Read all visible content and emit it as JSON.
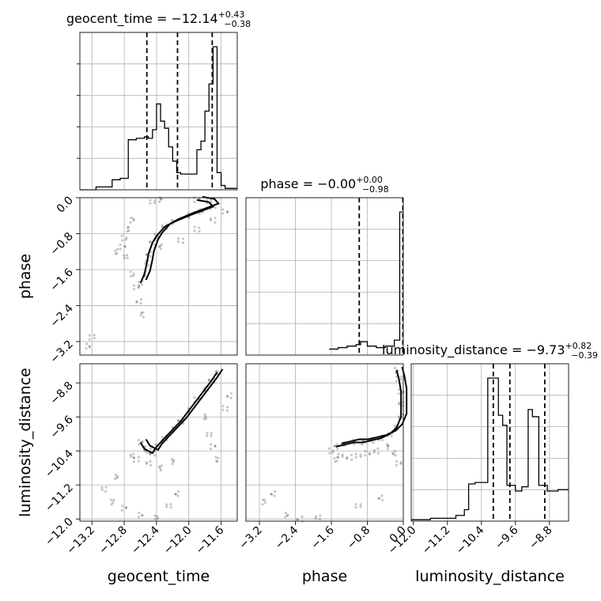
{
  "chart_data": {
    "type": "corner",
    "parameters": [
      {
        "name": "geocent_time",
        "label": "geocent_time",
        "range": [
          -13.35,
          -11.4
        ],
        "ticks": [
          -13.2,
          -12.8,
          -12.4,
          -12.0,
          -11.6
        ],
        "tick_labels": [
          "−13.2",
          "−12.8",
          "−12.4",
          "−12.0",
          "−11.6"
        ]
      },
      {
        "name": "phase",
        "label": "phase",
        "range": [
          -3.5,
          0.0
        ],
        "ticks": [
          -3.2,
          -2.4,
          -1.6,
          -0.8,
          0.0
        ],
        "tick_labels": [
          "−3.2",
          "−2.4",
          "−1.6",
          "−0.8",
          "0.0"
        ]
      },
      {
        "name": "luminosity_distance",
        "label": "luminosity_distance",
        "range": [
          -12.05,
          -8.35
        ],
        "ticks": [
          -12.0,
          -11.2,
          -10.4,
          -9.6,
          -8.8
        ],
        "tick_labels": [
          "−12.0",
          "−11.2",
          "−10.4",
          "−9.6",
          "−8.8"
        ]
      }
    ],
    "titles": [
      {
        "param": "geocent_time",
        "main": "geocent_time = −12.14",
        "sup": "+0.43",
        "sub": "−0.38"
      },
      {
        "param": "phase",
        "main": "phase = −0.00",
        "sup": "+0.00",
        "sub": "−0.98"
      },
      {
        "param": "luminosity_distance",
        "main": "luminosity_distance = −9.73",
        "sup": "+0.82",
        "sub": "−0.39"
      }
    ],
    "histograms": [
      {
        "param": "geocent_time",
        "quantiles": [
          -12.52,
          -12.14,
          -11.71
        ],
        "bin_edges": [
          -13.35,
          -13.15,
          -12.95,
          -12.85,
          -12.75,
          -12.65,
          -12.55,
          -12.5,
          -12.45,
          -12.4,
          -12.35,
          -12.3,
          -12.25,
          -12.2,
          -12.15,
          -12.1,
          -12.0,
          -11.9,
          -11.85,
          -11.8,
          -11.75,
          -11.7,
          -11.65,
          -11.6,
          -11.55,
          -11.4
        ],
        "counts": [
          0.0,
          0.02,
          0.07,
          0.08,
          0.35,
          0.36,
          0.37,
          0.36,
          0.42,
          0.6,
          0.48,
          0.43,
          0.3,
          0.2,
          0.12,
          0.11,
          0.11,
          0.28,
          0.34,
          0.55,
          0.74,
          1.0,
          0.12,
          0.03,
          0.01
        ]
      },
      {
        "param": "phase",
        "quantiles": [
          -0.98,
          -0.01
        ],
        "bin_edges": [
          -1.65,
          -1.45,
          -1.25,
          -1.05,
          -0.95,
          -0.8,
          -0.6,
          -0.4,
          -0.2,
          -0.08,
          0.0
        ],
        "counts": [
          0.04,
          0.05,
          0.06,
          0.07,
          0.09,
          0.06,
          0.05,
          0.06,
          0.1,
          0.96
        ]
      },
      {
        "param": "luminosity_distance",
        "quantiles": [
          -10.12,
          -9.73,
          -8.91
        ],
        "bin_edges": [
          -12.05,
          -11.6,
          -11.0,
          -10.8,
          -10.7,
          -10.55,
          -10.25,
          -10.0,
          -9.9,
          -9.8,
          -9.6,
          -9.45,
          -9.3,
          -9.2,
          -9.05,
          -8.85,
          -8.6,
          -8.35
        ],
        "counts": [
          0.01,
          0.02,
          0.04,
          0.08,
          0.26,
          0.27,
          1.0,
          0.74,
          0.67,
          0.25,
          0.21,
          0.24,
          0.78,
          0.73,
          0.25,
          0.21,
          0.22
        ]
      }
    ],
    "scatter_2d": [
      {
        "x": "geocent_time",
        "y": "phase",
        "points": [
          [
            -12.6,
            -1.9
          ],
          [
            -12.55,
            -1.7
          ],
          [
            -12.52,
            -1.45
          ],
          [
            -12.5,
            -1.25
          ],
          [
            -12.45,
            -1.0
          ],
          [
            -12.4,
            -0.85
          ],
          [
            -12.3,
            -0.65
          ],
          [
            -12.2,
            -0.55
          ],
          [
            -12.0,
            -0.4
          ],
          [
            -11.85,
            -0.3
          ],
          [
            -11.7,
            -0.2
          ],
          [
            -11.75,
            -0.1
          ],
          [
            -11.9,
            -0.05
          ],
          [
            -12.7,
            -0.5
          ],
          [
            -12.75,
            -0.7
          ],
          [
            -12.8,
            -0.9
          ],
          [
            -12.82,
            -1.1
          ],
          [
            -12.78,
            -1.3
          ],
          [
            -12.7,
            -1.7
          ],
          [
            -12.65,
            -2.0
          ],
          [
            -12.62,
            -2.3
          ],
          [
            -12.58,
            -2.6
          ],
          [
            -13.2,
            -3.1
          ],
          [
            -13.25,
            -3.3
          ],
          [
            -12.9,
            -1.2
          ],
          [
            -12.35,
            -1.1
          ],
          [
            -12.1,
            -0.95
          ],
          [
            -11.9,
            -0.7
          ],
          [
            -11.7,
            -0.5
          ],
          [
            -11.55,
            -0.3
          ],
          [
            -12.45,
            -0.1
          ],
          [
            -12.35,
            -0.05
          ]
        ]
      },
      {
        "x": "geocent_time",
        "y": "luminosity_distance",
        "points": [
          [
            -12.6,
            -10.2
          ],
          [
            -12.55,
            -10.35
          ],
          [
            -12.5,
            -10.4
          ],
          [
            -12.45,
            -10.45
          ],
          [
            -12.4,
            -10.3
          ],
          [
            -12.3,
            -10.1
          ],
          [
            -12.2,
            -9.9
          ],
          [
            -12.1,
            -9.7
          ],
          [
            -12.0,
            -9.45
          ],
          [
            -11.9,
            -9.2
          ],
          [
            -11.8,
            -8.95
          ],
          [
            -11.72,
            -8.75
          ],
          [
            -11.65,
            -8.55
          ],
          [
            -12.7,
            -10.5
          ],
          [
            -12.65,
            -10.6
          ],
          [
            -12.5,
            -10.7
          ],
          [
            -12.35,
            -10.8
          ],
          [
            -12.2,
            -10.65
          ],
          [
            -11.8,
            -9.6
          ],
          [
            -11.75,
            -10.0
          ],
          [
            -11.7,
            -10.3
          ],
          [
            -11.65,
            -10.6
          ],
          [
            -11.55,
            -9.4
          ],
          [
            -11.5,
            -9.1
          ],
          [
            -12.9,
            -11.0
          ],
          [
            -13.05,
            -11.3
          ],
          [
            -12.95,
            -11.6
          ],
          [
            -12.8,
            -11.75
          ],
          [
            -12.6,
            -11.9
          ],
          [
            -12.4,
            -11.95
          ],
          [
            -12.25,
            -11.7
          ],
          [
            -12.15,
            -11.4
          ]
        ]
      },
      {
        "x": "phase",
        "y": "luminosity_distance",
        "points": [
          [
            -1.5,
            -10.3
          ],
          [
            -1.3,
            -10.25
          ],
          [
            -1.1,
            -10.2
          ],
          [
            -0.9,
            -10.2
          ],
          [
            -0.7,
            -10.15
          ],
          [
            -0.5,
            -10.1
          ],
          [
            -0.3,
            -10.0
          ],
          [
            -0.15,
            -9.85
          ],
          [
            -0.05,
            -9.6
          ],
          [
            -0.05,
            -9.3
          ],
          [
            -0.05,
            -9.0
          ],
          [
            -0.1,
            -8.7
          ],
          [
            -0.15,
            -8.5
          ],
          [
            -1.4,
            -10.5
          ],
          [
            -1.2,
            -10.55
          ],
          [
            -1.0,
            -10.5
          ],
          [
            -0.8,
            -10.45
          ],
          [
            -0.6,
            -10.4
          ],
          [
            -0.35,
            -10.3
          ],
          [
            -0.2,
            -10.45
          ],
          [
            -0.1,
            -10.7
          ],
          [
            -1.6,
            -10.4
          ],
          [
            -1.5,
            -10.6
          ],
          [
            -2.9,
            -11.4
          ],
          [
            -3.1,
            -11.6
          ],
          [
            -2.6,
            -11.9
          ],
          [
            -2.3,
            -12.0
          ],
          [
            -1.9,
            -11.95
          ],
          [
            -1.0,
            -11.7
          ],
          [
            -0.5,
            -11.5
          ]
        ]
      }
    ]
  }
}
